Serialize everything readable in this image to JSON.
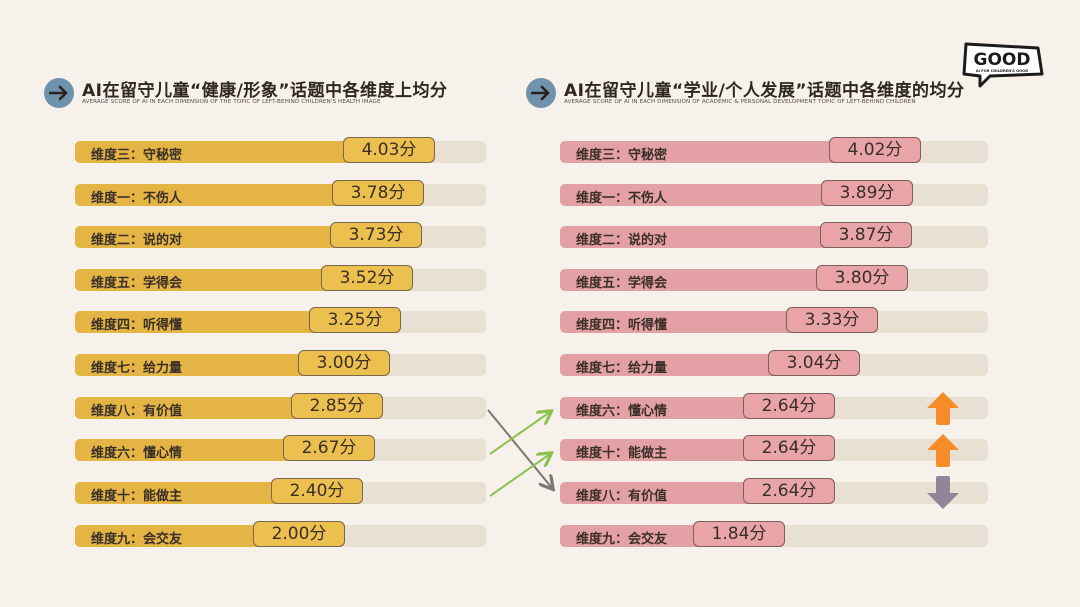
{
  "left_panel": {
    "title": "AI在留守儿童“健康/形象”话题中各维度上均分",
    "subtitle": "AVERAGE SCORE OF AI IN EACH DIMENSION OF THE TOPIC OF LEFT-BEHIND CHILDREN'S HEALTH IMAGE",
    "icon": "arrow-right-icon",
    "bar_color": "#e4b545"
  },
  "right_panel": {
    "title": "AI在留守儿童“学业/个人发展”话题中各维度的均分",
    "subtitle": "AVERAGE SCORE OF AI IN EACH DIMENSION OF ACADEMIC & PERSONAL DEVELOPMENT TOPIC OF LEFT-BEHIND CHILDREN",
    "icon": "arrow-right-icon",
    "bar_color": "#e4a1a5"
  },
  "logo": {
    "text": "GOOD",
    "tagline": "AI FOR CHILDREN'S GOOD"
  },
  "chart_data": [
    {
      "type": "bar",
      "orientation": "horizontal",
      "title": "AI在留守儿童“健康/形象”话题中各维度上均分",
      "subtitle": "AVERAGE SCORE OF AI IN EACH DIMENSION OF THE TOPIC OF LEFT-BEHIND CHILDREN'S HEALTH IMAGE",
      "categories": [
        "维度三：守秘密",
        "维度一：不伤人",
        "维度二：说的对",
        "维度五：学得会",
        "维度四：听得懂",
        "维度七：给力量",
        "维度八：有价值",
        "维度六：懂心情",
        "维度十：能做主",
        "维度九：会交友"
      ],
      "values": [
        4.03,
        3.78,
        3.73,
        3.52,
        3.25,
        3.0,
        2.85,
        2.67,
        2.4,
        2.0
      ],
      "labels": [
        "4.03分",
        "3.78分",
        "3.73分",
        "3.52分",
        "3.25分",
        "3.00分",
        "2.85分",
        "2.67分",
        "2.40分",
        "2.00分"
      ],
      "color": "#e4b545"
    },
    {
      "type": "bar",
      "orientation": "horizontal",
      "title": "AI在留守儿童“学业/个人发展”话题中各维度的均分",
      "subtitle": "AVERAGE SCORE OF AI IN EACH DIMENSION OF ACADEMIC & PERSONAL DEVELOPMENT TOPIC OF LEFT-BEHIND CHILDREN",
      "categories": [
        "维度三：守秘密",
        "维度一：不伤人",
        "维度二：说的对",
        "维度五：学得会",
        "维度四：听得懂",
        "维度七：给力量",
        "维度六：懂心情",
        "维度十：能做主",
        "维度八：有价值",
        "维度九：会交友"
      ],
      "values": [
        4.02,
        3.89,
        3.87,
        3.8,
        3.33,
        3.04,
        2.64,
        2.64,
        2.64,
        1.84
      ],
      "labels": [
        "4.02分",
        "3.89分",
        "3.87分",
        "3.80分",
        "3.33分",
        "3.04分",
        "2.64分",
        "2.64分",
        "2.64分",
        "1.84分"
      ],
      "color": "#e4a1a5",
      "rank_changes": [
        {
          "category": "维度六：懂心情",
          "direction": "up",
          "color": "#f68b2a"
        },
        {
          "category": "维度十：能做主",
          "direction": "up",
          "color": "#f68b2a"
        },
        {
          "category": "维度八：有价值",
          "direction": "down",
          "color": "#948399"
        }
      ]
    }
  ]
}
